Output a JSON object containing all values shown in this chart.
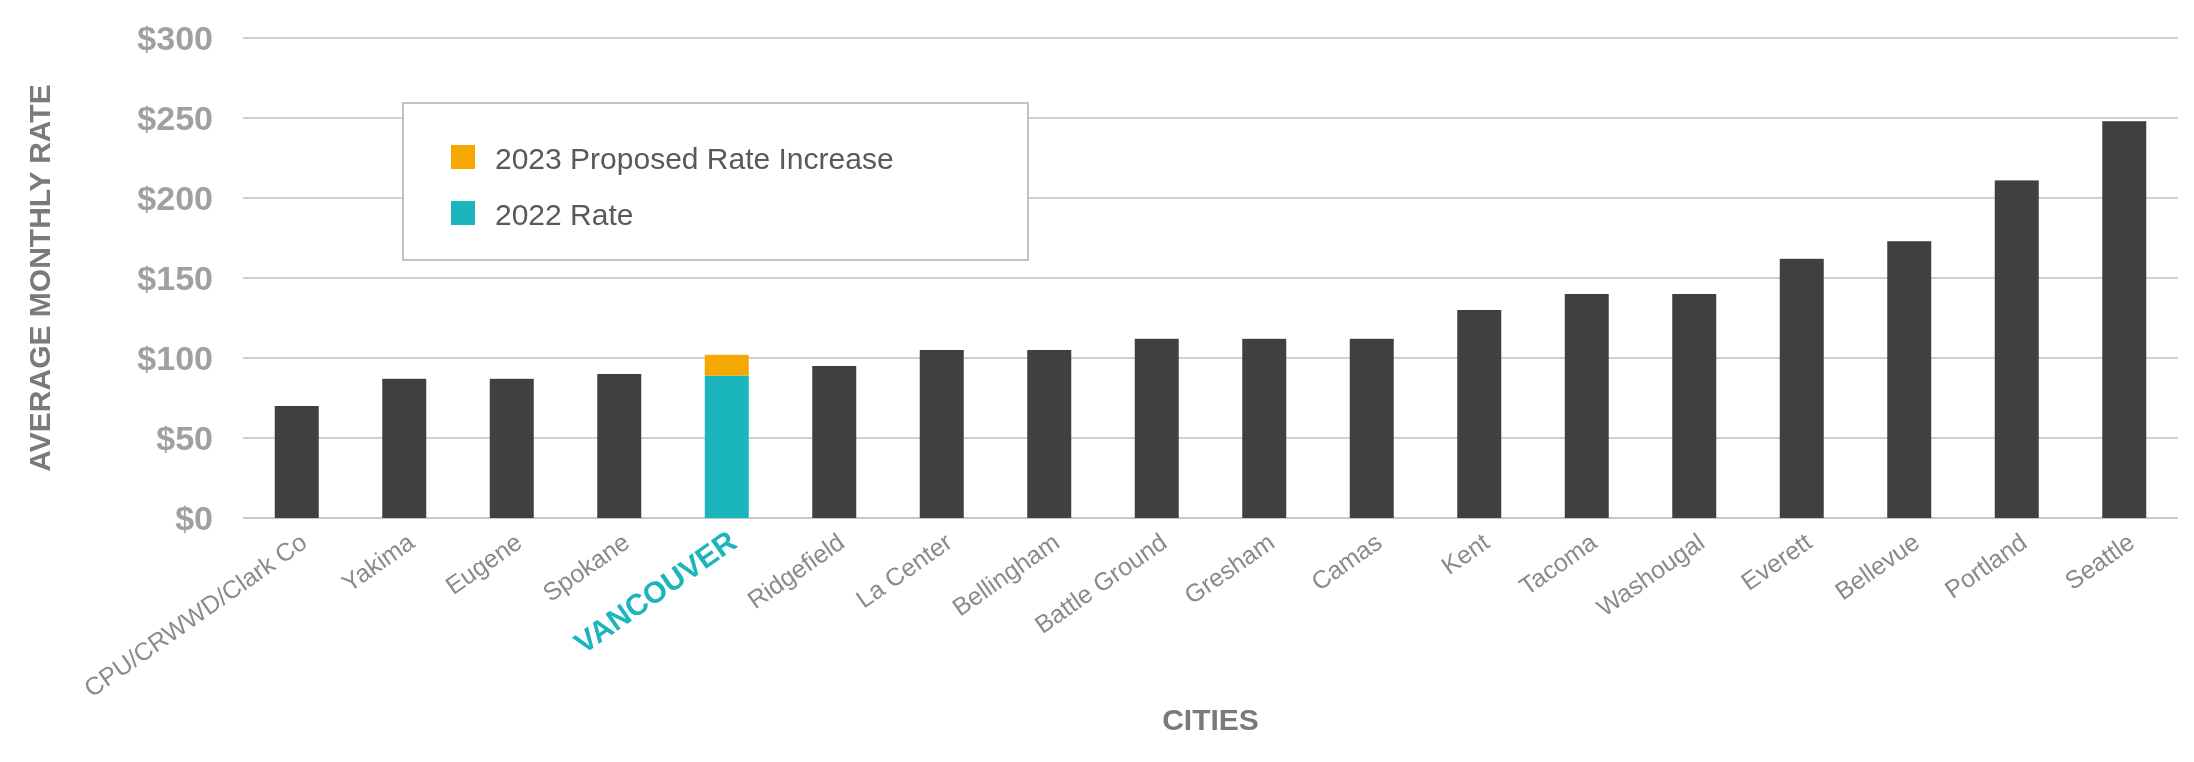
{
  "chart_data": {
    "type": "bar",
    "stacked": true,
    "xlabel": "CITIES",
    "ylabel": "AVERAGE MONTHLY RATE",
    "categories": [
      "CPU/CRWWD/Clark Co",
      "Yakima",
      "Eugene",
      "Spokane",
      "VANCOUVER",
      "Ridgefield",
      "La Center",
      "Bellingham",
      "Battle Ground",
      "Gresham",
      "Camas",
      "Kent",
      "Tacoma",
      "Washougal",
      "Everett",
      "Bellevue",
      "Portland",
      "Seattle"
    ],
    "series": [
      {
        "name": "2022 Rate",
        "color": "#1ab5bd",
        "colors": [
          "#404040",
          "#404040",
          "#404040",
          "#404040",
          "#1ab5bd",
          "#404040",
          "#404040",
          "#404040",
          "#404040",
          "#404040",
          "#404040",
          "#404040",
          "#404040",
          "#404040",
          "#404040",
          "#404040",
          "#404040",
          "#404040"
        ],
        "values": [
          70,
          87,
          87,
          90,
          89,
          95,
          105,
          105,
          112,
          112,
          112,
          130,
          140,
          140,
          162,
          173,
          211,
          248
        ]
      },
      {
        "name": "2023 Proposed Rate Increase",
        "color": "#f5a800",
        "values": [
          null,
          null,
          null,
          null,
          13,
          null,
          null,
          null,
          null,
          null,
          null,
          null,
          null,
          null,
          null,
          null,
          null,
          null
        ]
      }
    ],
    "ylim": [
      0,
      300
    ],
    "yticks": [
      {
        "value": 0,
        "label": "$0"
      },
      {
        "value": 50,
        "label": "$50"
      },
      {
        "value": 100,
        "label": "$100"
      },
      {
        "value": 150,
        "label": "$150"
      },
      {
        "value": 200,
        "label": "$200"
      },
      {
        "value": 250,
        "label": "$250"
      },
      {
        "value": 300,
        "label": "$300"
      }
    ],
    "grid": "y",
    "legend": "top left"
  }
}
